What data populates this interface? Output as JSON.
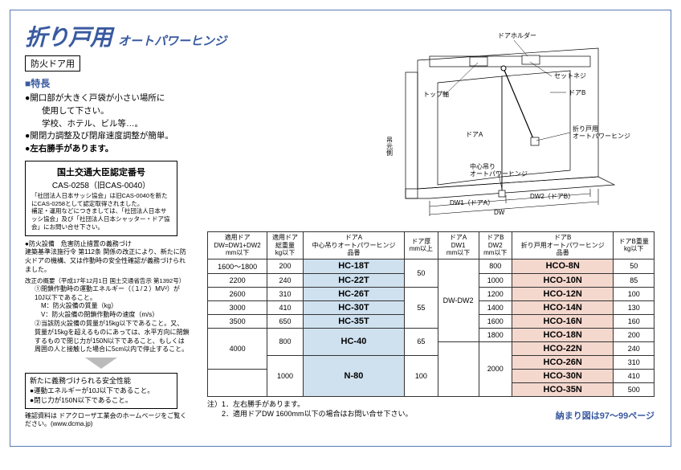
{
  "title": {
    "main": "折り戸用",
    "sub": "オートパワーヒンジ"
  },
  "badge": "防火ドア用",
  "features_header": "■特長",
  "features": [
    "●開口部が大きく戸袋が小さい場所に\n　使用して下さい。\n　学校、ホテル、ビル等…。",
    "●開閉力調整及び閉扉速度調整が簡単。",
    "●左右勝手があります。"
  ],
  "cert": {
    "title": "国土交通大臣認定番号",
    "number": "CAS-0258（旧CAS-0040）",
    "body": "「社団法人日本サッシ協会」は旧CAS-0040を新たにCAS-0258として認定取得されました。\n補足・運用などにつきましては、「社団法人日本サッシ協会」及び「社団法人日本シャッター・ドア協会」にお問い合せ下さい。"
  },
  "fire_spec": {
    "head": "●防火設備　危害防止措置の義務づけ\n建築基準法施行令 第112条 関係の改正により、新たに防火ドアの機構、又は作動時の安全性確認が義務づけられました。",
    "rev": "改正の概要（平成17年12月1日 国土交通省告示 第1392号）",
    "items": [
      "①閉鎖作動時の運動エネルギー（（１/２）MV²）が10J以下であること。",
      "　M：防火設備の質量（kg）",
      "　V：防火設備の閉鎖作動時の速度（m/s）",
      "②当該防火設備の質量が15kg以下であること。又、質量が15kgを超えるものにあっては、水平方向に閉鎖するもので閉じ力が150N以下であること、もしくは周囲の人と接触した場合に5cm以内で停止すること。"
    ]
  },
  "new_req": {
    "title": "新たに義務づけられる安全性能",
    "lines": [
      "●運動エネルギーが10J以下であること。",
      "●閉じ力が150N以下であること。"
    ]
  },
  "footer_note": "確認資料は ドアクローザ工業会のホームページをご覧ください。(www.dcma.jp)",
  "diagram_labels": {
    "holder": "ドアホルダー",
    "setscrew": "セットネジ",
    "topaxis": "トップ軸",
    "doorA": "ドアA",
    "doorB": "ドアB",
    "hinge_fold": "折り戸用\nオートパワーヒンジ",
    "hinge_center": "中心吊り\nオートパワーヒンジ",
    "origin": "吊元側",
    "dw1": "DW1（ドアA）",
    "dw2": "DW2（ドアB）",
    "dw": "DW"
  },
  "table": {
    "headers": [
      "適用ドア\nDW=DW1+DW2\nmm以下",
      "適用ドア\n総重量\nkg以下",
      "ドアA\n中心吊りオートパワーヒンジ\n品番",
      "ドア厚\nmm以上",
      "ドアA\nDW1\nmm以下",
      "ドアB\nDW2\nmm以下",
      "ドアB\n折り戸用オートパワーヒンジ\n品番",
      "ドアB重量\nkg以下"
    ],
    "rows": [
      {
        "dw": "1600〜1800",
        "wt": "200",
        "hc": "HC-18T",
        "th": "50",
        "dw1": "DW-DW2",
        "dw2": "800",
        "hco": "HCO-8N",
        "wb": "50"
      },
      {
        "dw": "2200",
        "wt": "240",
        "hc": "HC-22T",
        "th": "",
        "dw1": "",
        "dw2": "1000",
        "hco": "HCO-10N",
        "wb": "85"
      },
      {
        "dw": "2600",
        "wt": "310",
        "hc": "HC-26T",
        "th": "55",
        "dw1": "",
        "dw2": "1200",
        "hco": "HCO-12N",
        "wb": "100"
      },
      {
        "dw": "3000",
        "wt": "410",
        "hc": "HC-30T",
        "th": "",
        "dw1": "",
        "dw2": "1400",
        "hco": "HCO-14N",
        "wb": "130"
      },
      {
        "dw": "3500",
        "wt": "650",
        "hc": "HC-35T",
        "th": "",
        "dw1": "",
        "dw2": "1600",
        "hco": "HCO-16N",
        "wb": "160"
      },
      {
        "dw": "4000",
        "wt": "800",
        "hc": "HC-40",
        "th": "65",
        "dw1": "",
        "dw2": "1800",
        "hco": "HCO-18N",
        "wb": "200"
      },
      {
        "dw": "",
        "wt": "",
        "hc": "",
        "th": "",
        "dw1": "",
        "dw2": "2000",
        "hco": "HCO-22N",
        "wb": "240"
      },
      {
        "dw": "",
        "wt": "1000",
        "hc": "N-80",
        "th": "100",
        "dw1": "",
        "dw2": "",
        "hco": "HCO-26N",
        "wb": "310"
      },
      {
        "dw": "",
        "wt": "",
        "hc": "",
        "th": "",
        "dw1": "",
        "dw2": "",
        "hco": "HCO-30N",
        "wb": "410"
      },
      {
        "dw": "",
        "wt": "",
        "hc": "",
        "th": "",
        "dw1": "",
        "dw2": "",
        "hco": "HCO-35N",
        "wb": "500"
      }
    ],
    "notes": [
      "注）1．左右勝手があります。",
      "　　2．適用ドアDW 1600mm以下の場合はお問い合せ下さい。"
    ],
    "page_ref": "納まり図は97〜99ページ"
  }
}
